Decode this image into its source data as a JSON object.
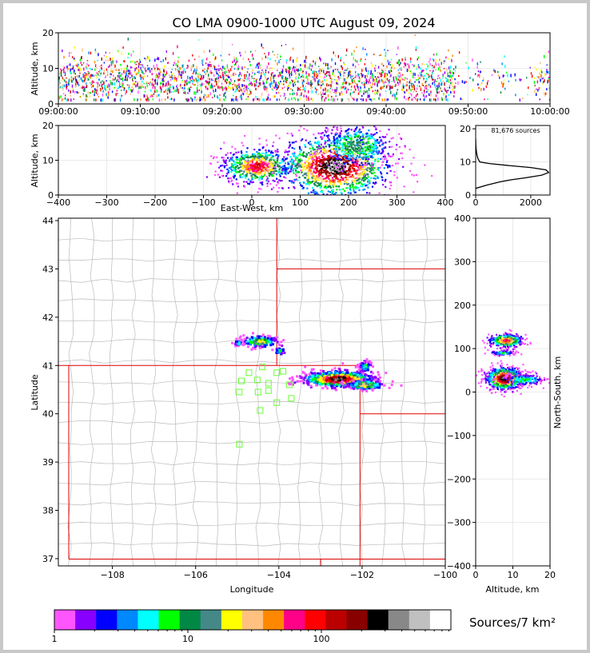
{
  "title": "CO LMA 0900-1000 UTC August 09, 2024",
  "colors": {
    "scale": [
      "#ff55ff",
      "#8800ff",
      "#0000ff",
      "#0088ff",
      "#00ffff",
      "#00ff00",
      "#008844",
      "#448888",
      "#ffff00",
      "#ffc080",
      "#ff8800",
      "#ff0088",
      "#ff0000",
      "#bb0000",
      "#880000",
      "#000000",
      "#888888",
      "#c0c0c0",
      "#ffffff"
    ],
    "boundary": "#dd0000",
    "county": "#bbbbbb",
    "station": "#66ff33"
  },
  "colorbar": {
    "label": "Sources/7 km²",
    "ticks": [
      "1",
      "10",
      "100"
    ],
    "scale": "log"
  },
  "chart_data": [
    {
      "type": "scatter",
      "panel": "time-altitude",
      "ylabel": "Altitude, km",
      "ylim": [
        0,
        20
      ],
      "yticks": [
        "0",
        "10",
        "20"
      ],
      "xticks": [
        "09:00:00",
        "09:10:00",
        "09:20:00",
        "09:30:00",
        "09:40:00",
        "09:50:00",
        "10:00:00"
      ],
      "xlim_minutes": [
        0,
        60
      ],
      "altitude_band_km": [
        2,
        18
      ]
    },
    {
      "type": "heatmap",
      "panel": "east-west-altitude",
      "xlabel": "East-West, km",
      "ylabel": "Altitude, km",
      "xlim": [
        -400,
        400
      ],
      "ylim": [
        0,
        20
      ],
      "xticks": [
        "−400",
        "−300",
        "−200",
        "−100",
        "0",
        "100",
        "200",
        "300",
        "400"
      ],
      "yticks": [
        "0",
        "10",
        "20"
      ]
    },
    {
      "type": "line",
      "panel": "altitude-histogram",
      "annotation": "81,676 sources",
      "xlim": [
        0,
        2700
      ],
      "ylim": [
        0,
        21
      ],
      "xticks": [
        "0",
        "2000"
      ],
      "yticks": [
        "0",
        "10",
        "20"
      ],
      "points": [
        [
          0,
          2
        ],
        [
          400,
          3
        ],
        [
          900,
          4
        ],
        [
          1300,
          4.6
        ],
        [
          1800,
          5.2
        ],
        [
          2400,
          6
        ],
        [
          2650,
          6.8
        ],
        [
          2550,
          7.6
        ],
        [
          2000,
          8.3
        ],
        [
          1200,
          8.9
        ],
        [
          500,
          9.5
        ],
        [
          150,
          10
        ],
        [
          80,
          11
        ],
        [
          50,
          12
        ],
        [
          30,
          13
        ],
        [
          15,
          14
        ],
        [
          5,
          15
        ],
        [
          0,
          17
        ]
      ]
    },
    {
      "type": "heatmap",
      "panel": "plan-view",
      "xlabel": "Longitude",
      "ylabel": "Latitude",
      "xlim": [
        -109.3,
        -100
      ],
      "ylim": [
        36.85,
        44.05
      ],
      "xticks": [
        "−108",
        "−106",
        "−104",
        "−102",
        "−100"
      ],
      "yticks": [
        "37",
        "38",
        "39",
        "40",
        "41",
        "42",
        "43",
        "44"
      ]
    },
    {
      "type": "heatmap",
      "panel": "altitude-north-south",
      "xlabel": "Altitude, km",
      "ylabel": "North-South, km",
      "xlim": [
        0,
        20
      ],
      "ylim": [
        -400,
        400
      ],
      "xticks": [
        "0",
        "10",
        "20"
      ],
      "yticks": [
        "400",
        "300",
        "200",
        "100",
        "0",
        "−100",
        "−200",
        "−300",
        "−400"
      ]
    }
  ]
}
